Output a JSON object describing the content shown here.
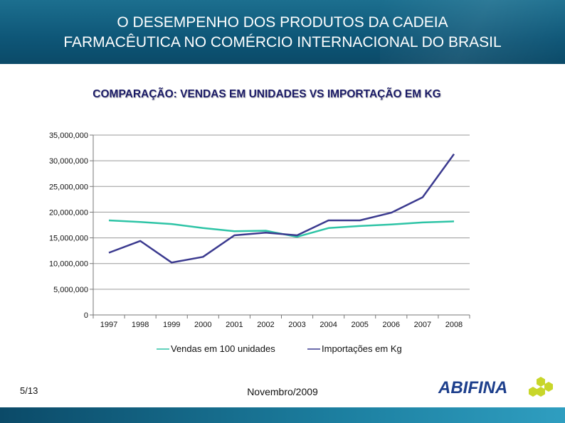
{
  "slide": {
    "title_line1": "O DESEMPENHO DOS PRODUTOS DA CADEIA",
    "title_line2": "FARMACÊUTICA NO COMÉRCIO INTERNACIONAL DO BRASIL",
    "page_number": "5/13",
    "date": "Novembro/2009",
    "logo_text": "ABIFINA"
  },
  "colors": {
    "header": "#0e5677",
    "vendas": "#2ec4a6",
    "importacoes": "#3b3a8f",
    "logo_blue": "#1d3f8c",
    "logo_yellow": "#c8d62a"
  },
  "chart_data": {
    "type": "line",
    "title": "COMPARAÇÃO: VENDAS EM UNIDADES  VS  IMPORTAÇÃO EM KG",
    "categories": [
      "1997",
      "1998",
      "1999",
      "2000",
      "2001",
      "2002",
      "2003",
      "2004",
      "2005",
      "2006",
      "2007",
      "2008"
    ],
    "ylim": [
      0,
      35000000
    ],
    "yticks": [
      0,
      5000000,
      10000000,
      15000000,
      20000000,
      25000000,
      30000000,
      35000000
    ],
    "ytick_labels": [
      "0",
      "5,000,000",
      "10,000,000",
      "15,000,000",
      "20,000,000",
      "25,000,000",
      "30,000,000",
      "35,000,000"
    ],
    "grid": true,
    "legend_position": "bottom",
    "series": [
      {
        "name": "Vendas em 100 unidades",
        "values": [
          18400000,
          18100000,
          17700000,
          16900000,
          16300000,
          16400000,
          15200000,
          16900000,
          17300000,
          17600000,
          18000000,
          18200000
        ]
      },
      {
        "name": "Importações em Kg",
        "values": [
          12100000,
          14400000,
          10200000,
          11300000,
          15500000,
          16000000,
          15500000,
          18400000,
          18400000,
          19900000,
          22900000,
          31300000
        ]
      }
    ]
  }
}
